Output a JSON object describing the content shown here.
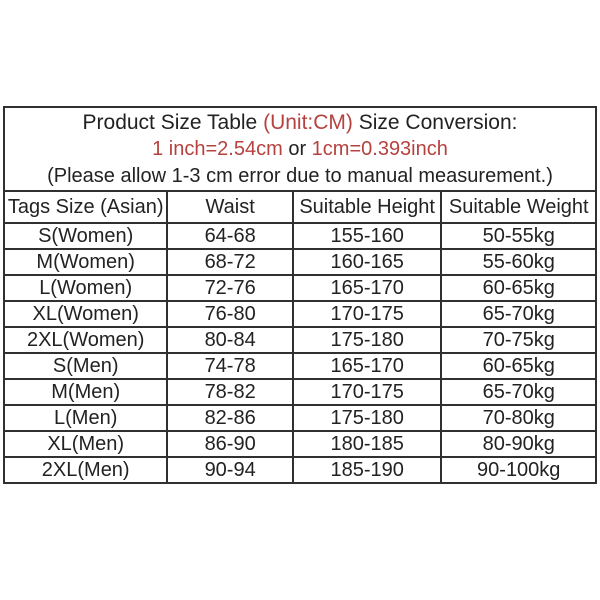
{
  "colors": {
    "accent_red": "#b5423f",
    "text": "#222222",
    "border": "#303030",
    "background": "#ffffff"
  },
  "chart_data": {
    "type": "table",
    "title": "Product Size Table (Unit:CM) Size Conversion:",
    "title_segments": {
      "prefix": "Product Size Table ",
      "unit": "(Unit:CM)",
      "suffix": " Size Conversion:"
    },
    "conversion_line": {
      "left": "1 inch=2.54cm",
      "middle": " or ",
      "right": "1cm=0.393inch"
    },
    "note": "(Please allow 1-3 cm error due to manual measurement.)",
    "columns": [
      "Tags Size (Asian)",
      "Waist",
      "Suitable Height",
      "Suitable Weight"
    ],
    "rows": [
      [
        "S(Women)",
        "64-68",
        "155-160",
        "50-55kg"
      ],
      [
        "M(Women)",
        "68-72",
        "160-165",
        "55-60kg"
      ],
      [
        "L(Women)",
        "72-76",
        "165-170",
        "60-65kg"
      ],
      [
        "XL(Women)",
        "76-80",
        "170-175",
        "65-70kg"
      ],
      [
        "2XL(Women)",
        "80-84",
        "175-180",
        "70-75kg"
      ],
      [
        "S(Men)",
        "74-78",
        "165-170",
        "60-65kg"
      ],
      [
        "M(Men)",
        "78-82",
        "170-175",
        "65-70kg"
      ],
      [
        "L(Men)",
        "82-86",
        "175-180",
        "70-80kg"
      ],
      [
        "XL(Men)",
        "86-90",
        "180-185",
        "80-90kg"
      ],
      [
        "2XL(Men)",
        "90-94",
        "185-190",
        "90-100kg"
      ]
    ],
    "layout": {
      "grid": "on",
      "column_widths_pct": [
        27.6,
        21.2,
        25.1,
        26.1
      ]
    }
  }
}
